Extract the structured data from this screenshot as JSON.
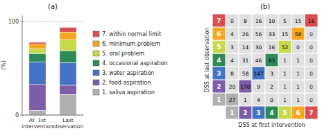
{
  "chart_data": [
    {
      "type": "bar",
      "stacked": true,
      "title": "(a)",
      "ylabel": "(%)",
      "categories": [
        "At  1st\nintervention",
        "Last\nobservation"
      ],
      "series": [
        {
          "name": "1. saliva aspiration",
          "color": "#b0b0b0",
          "values": [
            5,
            22
          ]
        },
        {
          "name": "2. food aspiration",
          "color": "#7b5ea7",
          "values": [
            28,
            10
          ]
        },
        {
          "name": "3. water aspiration",
          "color": "#4472c4",
          "values": [
            24,
            24
          ]
        },
        {
          "name": "4. occasional aspiration",
          "color": "#2e8b57",
          "values": [
            9,
            13
          ]
        },
        {
          "name": "5. oral problem",
          "color": "#c8d84b",
          "values": [
            5,
            12
          ]
        },
        {
          "name": "6. minimum problem",
          "color": "#f5a623",
          "values": [
            5,
            8
          ]
        },
        {
          "name": "7. within normal limit",
          "color": "#d94f4f",
          "values": [
            2,
            5
          ]
        }
      ],
      "ylim": [
        0,
        107
      ],
      "yticks": [
        0,
        100
      ],
      "grid": true
    },
    {
      "type": "heatmap",
      "title": "(b)",
      "xlabel": "DSS at first intervention",
      "ylabel": "DSS at last observation",
      "x": [
        1,
        2,
        3,
        4,
        5,
        6,
        7
      ],
      "y": [
        1,
        2,
        3,
        4,
        5,
        6,
        7
      ],
      "colors": [
        "#b0b0b0",
        "#7b5ea7",
        "#4472c4",
        "#2e8b57",
        "#c8d84b",
        "#f5a623",
        "#d94f4f"
      ],
      "color": "#e0e0e0",
      "values": [
        [
          27,
          1,
          4,
          0,
          1,
          1,
          0
        ],
        [
          20,
          170,
          9,
          2,
          1,
          1,
          0
        ],
        [
          8,
          58,
          147,
          3,
          1,
          1,
          0
        ],
        [
          4,
          31,
          46,
          83,
          1,
          1,
          0
        ],
        [
          3,
          14,
          30,
          16,
          52,
          0,
          0
        ],
        [
          4,
          26,
          56,
          33,
          15,
          58,
          0
        ],
        [
          0,
          8,
          16,
          10,
          5,
          15,
          16
        ]
      ],
      "data_labels": true
    }
  ]
}
